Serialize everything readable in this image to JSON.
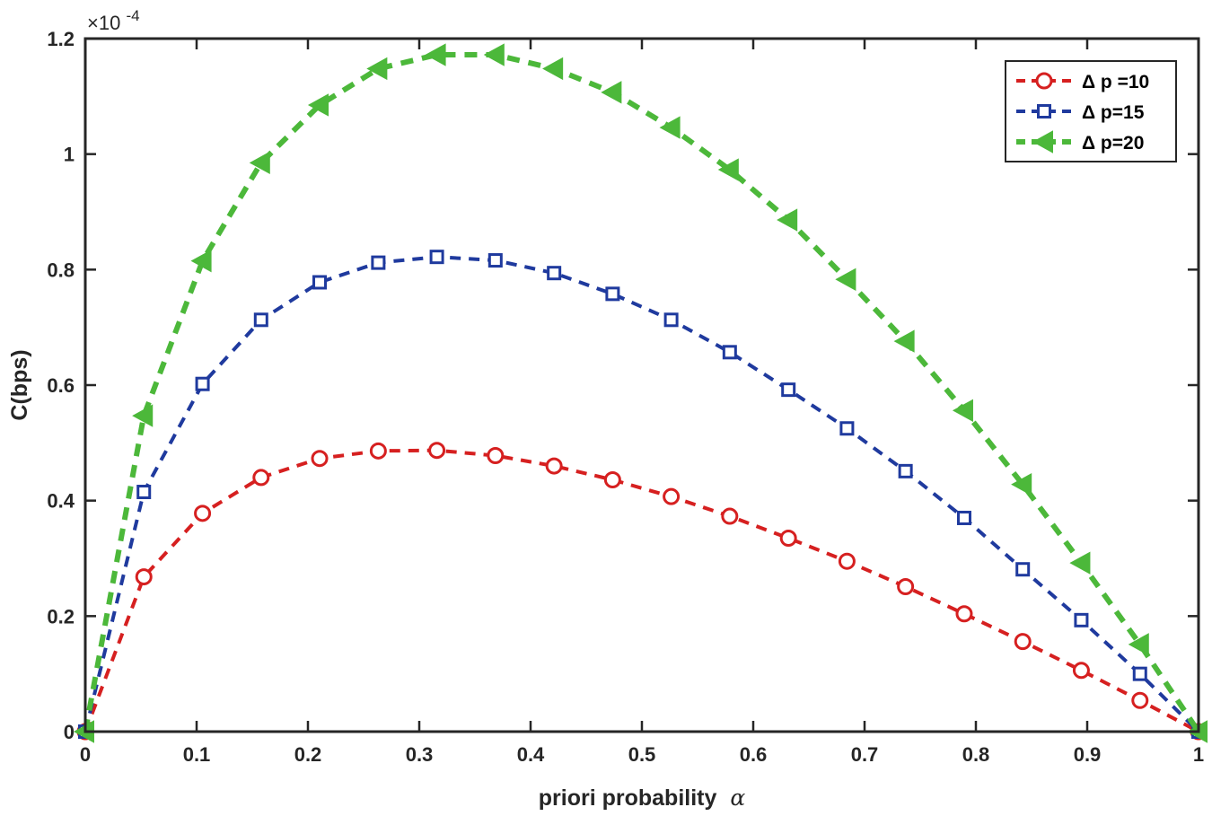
{
  "chart_data": {
    "type": "line",
    "title": "",
    "xlabel": "priori probability",
    "xlabel_symbol": "α",
    "ylabel": "C(bps)",
    "y_exponent_label": "×10",
    "y_exponent_power": "-4",
    "xlim": [
      0,
      1
    ],
    "ylim": [
      0,
      1.2
    ],
    "xticks": [
      "0",
      "0.1",
      "0.2",
      "0.3",
      "0.4",
      "0.5",
      "0.6",
      "0.7",
      "0.8",
      "0.9",
      "1"
    ],
    "yticks": [
      "0",
      "0.2",
      "0.4",
      "0.6",
      "0.8",
      "1",
      "1.2"
    ],
    "xtick_values": [
      0,
      0.1,
      0.2,
      0.3,
      0.4,
      0.5,
      0.6,
      0.7,
      0.8,
      0.9,
      1
    ],
    "ytick_values": [
      0,
      0.2,
      0.4,
      0.6,
      0.8,
      1.0,
      1.2
    ],
    "legend_position": "top-right",
    "x": [
      0,
      0.0526,
      0.1053,
      0.1579,
      0.2105,
      0.2632,
      0.3158,
      0.3684,
      0.4211,
      0.4737,
      0.5263,
      0.5789,
      0.6316,
      0.6842,
      0.7368,
      0.7895,
      0.8421,
      0.8947,
      0.9474,
      1.0
    ],
    "series": [
      {
        "name": "Δ p =10",
        "color": "#d62020",
        "marker": "circle",
        "values": [
          0,
          0.268,
          0.378,
          0.44,
          0.473,
          0.486,
          0.487,
          0.478,
          0.46,
          0.436,
          0.407,
          0.373,
          0.335,
          0.295,
          0.251,
          0.204,
          0.156,
          0.106,
          0.054,
          0
        ]
      },
      {
        "name": "Δ p=15",
        "color": "#1f3a9e",
        "marker": "square",
        "values": [
          0,
          0.415,
          0.602,
          0.713,
          0.778,
          0.812,
          0.822,
          0.816,
          0.794,
          0.758,
          0.713,
          0.657,
          0.592,
          0.525,
          0.451,
          0.37,
          0.281,
          0.193,
          0.1,
          0
        ]
      },
      {
        "name": "Δ p=20",
        "color": "#4cb83a",
        "marker": "triangle-left",
        "values": [
          0,
          0.547,
          0.815,
          0.985,
          1.085,
          1.148,
          1.172,
          1.172,
          1.148,
          1.107,
          1.046,
          0.973,
          0.886,
          0.783,
          0.676,
          0.556,
          0.428,
          0.292,
          0.151,
          0
        ]
      }
    ]
  }
}
